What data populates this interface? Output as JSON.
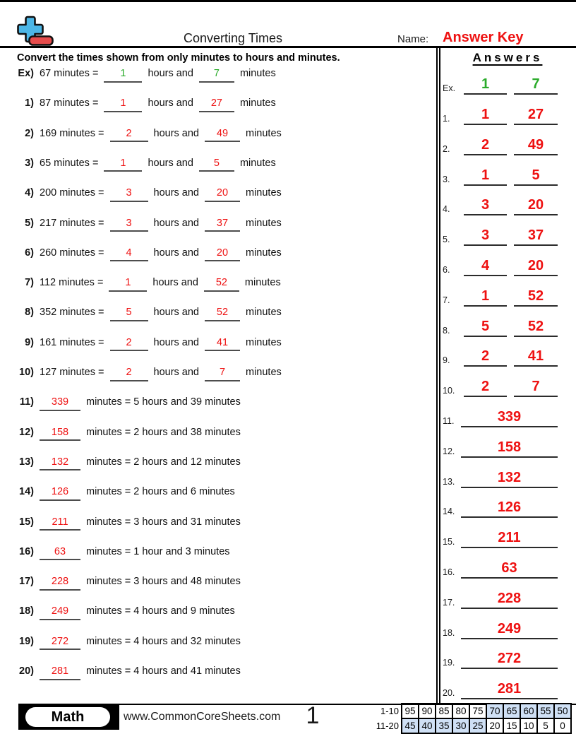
{
  "page": {
    "title": "Converting Times",
    "name_label": "Name:",
    "name_value": "Answer Key",
    "instruction": "Convert the times shown from only minutes to hours and minutes.",
    "answers_title": "Answers"
  },
  "colors": {
    "answer_red": "#ee1111",
    "example_green": "#2bab2b",
    "table_highlight": "#cfe0f5",
    "logo_blue": "#4cb6e6",
    "logo_red": "#e64c4c"
  },
  "strings": {
    "minutes_eq": "minutes =",
    "hours_and": "hours and",
    "minutes_word": "minutes"
  },
  "questions": [
    {
      "label": "Ex)",
      "type": "fill_hm",
      "total": "67",
      "hours": "1",
      "mins": "7",
      "example": true
    },
    {
      "label": "1)",
      "type": "fill_hm",
      "total": "87",
      "hours": "1",
      "mins": "27"
    },
    {
      "label": "2)",
      "type": "fill_hm",
      "total": "169",
      "hours": "2",
      "mins": "49"
    },
    {
      "label": "3)",
      "type": "fill_hm",
      "total": "65",
      "hours": "1",
      "mins": "5"
    },
    {
      "label": "4)",
      "type": "fill_hm",
      "total": "200",
      "hours": "3",
      "mins": "20"
    },
    {
      "label": "5)",
      "type": "fill_hm",
      "total": "217",
      "hours": "3",
      "mins": "37"
    },
    {
      "label": "6)",
      "type": "fill_hm",
      "total": "260",
      "hours": "4",
      "mins": "20"
    },
    {
      "label": "7)",
      "type": "fill_hm",
      "total": "112",
      "hours": "1",
      "mins": "52"
    },
    {
      "label": "8)",
      "type": "fill_hm",
      "total": "352",
      "hours": "5",
      "mins": "52"
    },
    {
      "label": "9)",
      "type": "fill_hm",
      "total": "161",
      "hours": "2",
      "mins": "41"
    },
    {
      "label": "10)",
      "type": "fill_hm",
      "total": "127",
      "hours": "2",
      "mins": "7"
    },
    {
      "label": "11)",
      "type": "fill_total",
      "total": "339",
      "suffix": "minutes = 5 hours and 39 minutes"
    },
    {
      "label": "12)",
      "type": "fill_total",
      "total": "158",
      "suffix": "minutes = 2 hours and 38 minutes"
    },
    {
      "label": "13)",
      "type": "fill_total",
      "total": "132",
      "suffix": "minutes = 2 hours and 12 minutes"
    },
    {
      "label": "14)",
      "type": "fill_total",
      "total": "126",
      "suffix": "minutes = 2 hours and 6 minutes"
    },
    {
      "label": "15)",
      "type": "fill_total",
      "total": "211",
      "suffix": "minutes = 3 hours and 31 minutes"
    },
    {
      "label": "16)",
      "type": "fill_total",
      "total": "63",
      "suffix": "minutes = 1 hour and 3 minutes"
    },
    {
      "label": "17)",
      "type": "fill_total",
      "total": "228",
      "suffix": "minutes = 3 hours and 48 minutes"
    },
    {
      "label": "18)",
      "type": "fill_total",
      "total": "249",
      "suffix": "minutes = 4 hours and 9 minutes"
    },
    {
      "label": "19)",
      "type": "fill_total",
      "total": "272",
      "suffix": "minutes = 4 hours and 32 minutes"
    },
    {
      "label": "20)",
      "type": "fill_total",
      "total": "281",
      "suffix": "minutes = 4 hours and 41 minutes"
    }
  ],
  "answers": [
    {
      "label": "Ex.",
      "values": [
        "1",
        "7"
      ],
      "example": true
    },
    {
      "label": "1.",
      "values": [
        "1",
        "27"
      ]
    },
    {
      "label": "2.",
      "values": [
        "2",
        "49"
      ]
    },
    {
      "label": "3.",
      "values": [
        "1",
        "5"
      ]
    },
    {
      "label": "4.",
      "values": [
        "3",
        "20"
      ]
    },
    {
      "label": "5.",
      "values": [
        "3",
        "37"
      ]
    },
    {
      "label": "6.",
      "values": [
        "4",
        "20"
      ]
    },
    {
      "label": "7.",
      "values": [
        "1",
        "52"
      ]
    },
    {
      "label": "8.",
      "values": [
        "5",
        "52"
      ]
    },
    {
      "label": "9.",
      "values": [
        "2",
        "41"
      ]
    },
    {
      "label": "10.",
      "values": [
        "2",
        "7"
      ]
    },
    {
      "label": "11.",
      "values": [
        "339"
      ]
    },
    {
      "label": "12.",
      "values": [
        "158"
      ]
    },
    {
      "label": "13.",
      "values": [
        "132"
      ]
    },
    {
      "label": "14.",
      "values": [
        "126"
      ]
    },
    {
      "label": "15.",
      "values": [
        "211"
      ]
    },
    {
      "label": "16.",
      "values": [
        "63"
      ]
    },
    {
      "label": "17.",
      "values": [
        "228"
      ]
    },
    {
      "label": "18.",
      "values": [
        "249"
      ]
    },
    {
      "label": "19.",
      "values": [
        "272"
      ]
    },
    {
      "label": "20.",
      "values": [
        "281"
      ]
    }
  ],
  "footer": {
    "badge": "Math",
    "url": "www.CommonCoreSheets.com",
    "page_number": "1",
    "score_table": {
      "rows": [
        {
          "label": "1-10",
          "values": [
            "95",
            "90",
            "85",
            "80",
            "75",
            "70",
            "65",
            "60",
            "55",
            "50"
          ],
          "highlighted": [
            false,
            false,
            false,
            false,
            false,
            true,
            true,
            true,
            true,
            true
          ]
        },
        {
          "label": "11-20",
          "values": [
            "45",
            "40",
            "35",
            "30",
            "25",
            "20",
            "15",
            "10",
            "5",
            "0"
          ],
          "highlighted": [
            true,
            true,
            true,
            true,
            true,
            false,
            false,
            false,
            false,
            false
          ]
        }
      ]
    }
  }
}
